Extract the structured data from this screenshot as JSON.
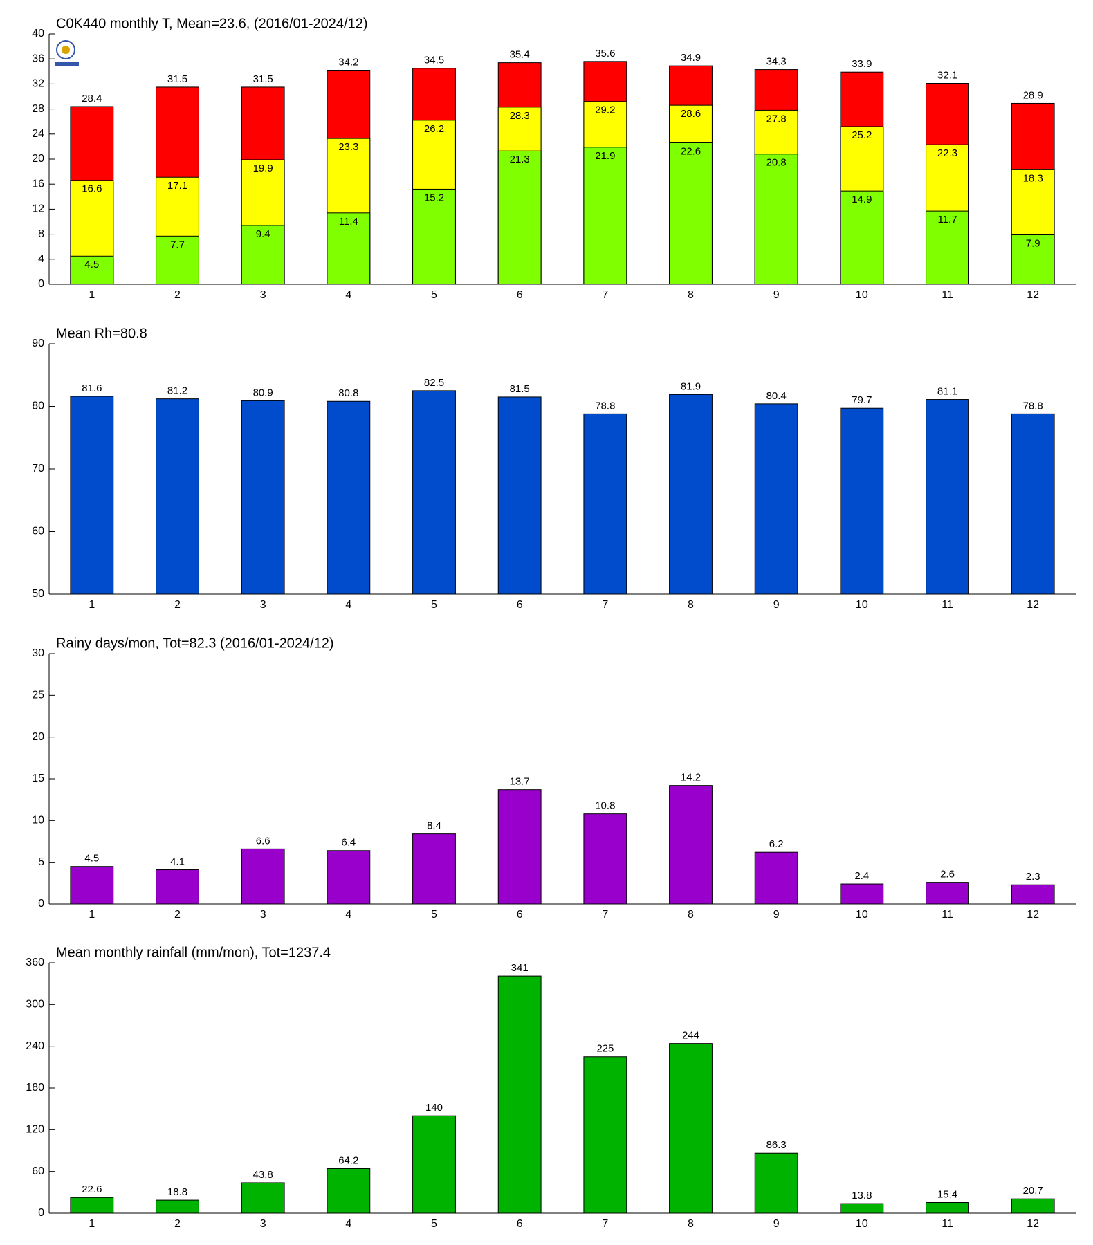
{
  "chart_data": [
    {
      "type": "bar",
      "barmode": "overlay",
      "title": "C0K440 monthly T, Mean=23.6, (2016/01-2024/12)",
      "categories": [
        1,
        2,
        3,
        4,
        5,
        6,
        7,
        8,
        9,
        10,
        11,
        12
      ],
      "series": [
        {
          "color": "#80ff00",
          "values": [
            4.5,
            7.7,
            9.4,
            11.4,
            15.2,
            21.3,
            21.9,
            22.6,
            20.8,
            14.9,
            11.7,
            7.9
          ]
        },
        {
          "color": "#ffff00",
          "values": [
            16.6,
            17.1,
            19.9,
            23.3,
            26.2,
            28.3,
            29.2,
            28.6,
            27.8,
            25.2,
            22.3,
            18.3
          ]
        },
        {
          "color": "#ff0000",
          "values": [
            28.4,
            31.5,
            31.5,
            34.2,
            34.5,
            35.4,
            35.6,
            34.9,
            34.3,
            33.9,
            32.1,
            28.9
          ]
        }
      ],
      "ylim": [
        0,
        40
      ],
      "yticks": [
        0,
        4,
        8,
        12,
        16,
        20,
        24,
        28,
        32,
        36,
        40
      ]
    },
    {
      "type": "bar",
      "title": "Mean Rh=80.8",
      "categories": [
        1,
        2,
        3,
        4,
        5,
        6,
        7,
        8,
        9,
        10,
        11,
        12
      ],
      "values": [
        81.6,
        81.2,
        80.9,
        80.8,
        82.5,
        81.5,
        78.8,
        81.9,
        80.4,
        79.7,
        81.1,
        78.8
      ],
      "color": "#004ccc",
      "ylim": [
        50,
        90
      ],
      "yticks": [
        50,
        60,
        70,
        80,
        90
      ]
    },
    {
      "type": "bar",
      "title": "Rainy days/mon, Tot=82.3 (2016/01-2024/12)",
      "categories": [
        1,
        2,
        3,
        4,
        5,
        6,
        7,
        8,
        9,
        10,
        11,
        12
      ],
      "values": [
        4.5,
        4.1,
        6.6,
        6.4,
        8.4,
        13.7,
        10.8,
        14.2,
        6.2,
        2.4,
        2.6,
        2.3
      ],
      "color": "#9900cc",
      "ylim": [
        0,
        30
      ],
      "yticks": [
        0,
        5,
        10,
        15,
        20,
        25,
        30
      ]
    },
    {
      "type": "bar",
      "title": "Mean monthly rainfall (mm/mon), Tot=1237.4",
      "categories": [
        1,
        2,
        3,
        4,
        5,
        6,
        7,
        8,
        9,
        10,
        11,
        12
      ],
      "values": [
        22.6,
        18.8,
        43.8,
        64.2,
        140,
        341,
        225,
        244,
        86.3,
        13.8,
        15.4,
        20.7
      ],
      "color": "#00b300",
      "ylim": [
        0,
        360
      ],
      "yticks": [
        0,
        60,
        120,
        180,
        240,
        300,
        360
      ]
    }
  ]
}
